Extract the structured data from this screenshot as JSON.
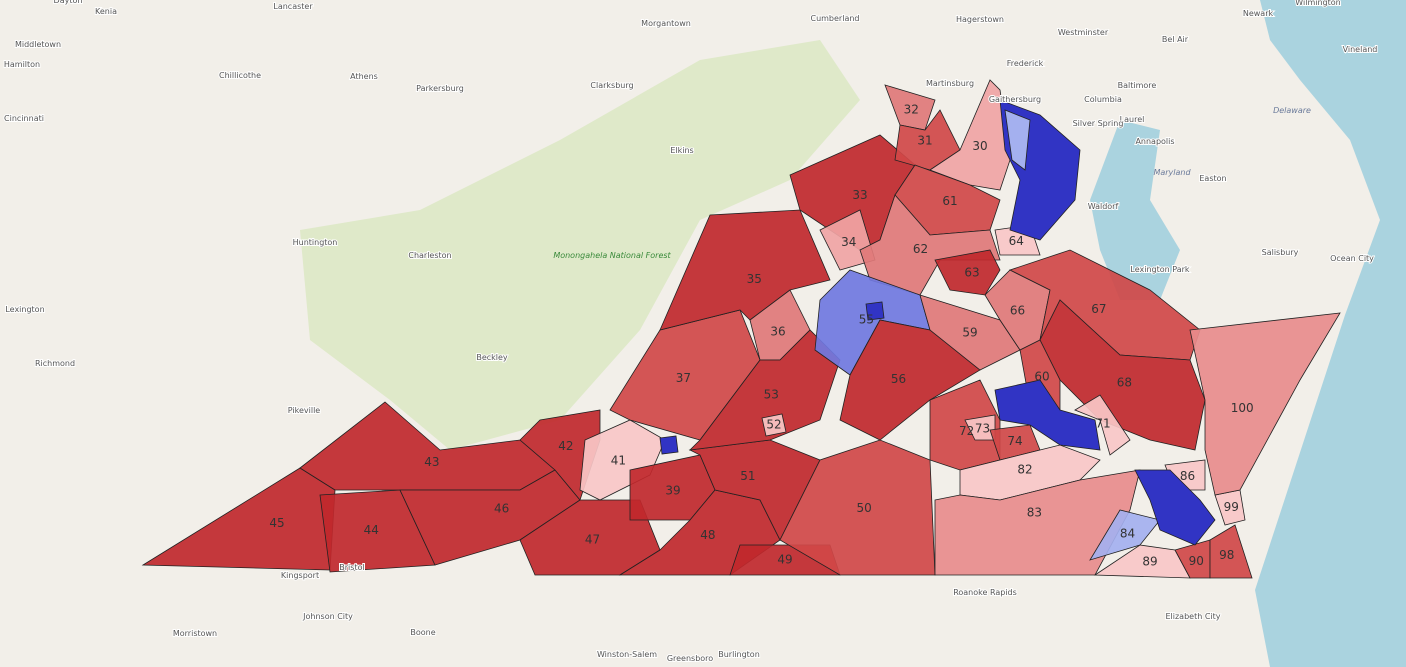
{
  "map": {
    "places": [
      "Dayton",
      "Kenia",
      "Lancaster",
      "Middletown",
      "Hamilton",
      "Chillicothe",
      "Athens",
      "Parkersburg",
      "Cincinnati",
      "Clarksburg",
      "Morgantown",
      "Cumberland",
      "Hagerstown",
      "Westminster",
      "Bel Air",
      "Baltimore",
      "Wilmington",
      "Newark",
      "Vineland",
      "Frederick",
      "Martinsburg",
      "Elkins",
      "Huntington",
      "Charleston",
      "Lexington",
      "Richmond",
      "Beckley",
      "Pikeville",
      "Kingsport",
      "Bristol",
      "Johnson City",
      "Morristown",
      "Boone",
      "Winston-Salem",
      "Greensboro",
      "Burlington",
      "Roanoke Rapids",
      "Elizabeth City",
      "Annapolis",
      "Waldorf",
      "Easton",
      "Salisbury",
      "Ocean City",
      "Lexington Park",
      "Laurel",
      "Columbia",
      "Gaithersburg",
      "Silver Spring"
    ],
    "regions": [
      "Monongahela National Forest",
      "Maryland",
      "Delaware"
    ],
    "districts": [
      {
        "label": "45",
        "color": "#c0282c"
      },
      {
        "label": "44",
        "color": "#c0282c"
      },
      {
        "label": "43",
        "color": "#c0282c"
      },
      {
        "label": "46",
        "color": "#c0282c"
      },
      {
        "label": "42",
        "color": "#c0282c"
      },
      {
        "label": "47",
        "color": "#c0282c"
      },
      {
        "label": "41",
        "color": "#f9c7c7"
      },
      {
        "label": "39",
        "color": "#c0282c"
      },
      {
        "label": "48",
        "color": "#c0282c"
      },
      {
        "label": "49",
        "color": "#c0282c"
      },
      {
        "label": "51",
        "color": "#c0282c"
      },
      {
        "label": "37",
        "color": "#d04848"
      },
      {
        "label": "35",
        "color": "#c0282c"
      },
      {
        "label": "36",
        "color": "#e07878"
      },
      {
        "label": "53",
        "color": "#c0282c"
      },
      {
        "label": "33",
        "color": "#c0282c"
      },
      {
        "label": "34",
        "color": "#f0a4a4"
      },
      {
        "label": "32",
        "color": "#e07878"
      },
      {
        "label": "31",
        "color": "#d04848"
      },
      {
        "label": "30",
        "color": "#f0a4a4"
      },
      {
        "label": "61",
        "color": "#d04848"
      },
      {
        "label": "62",
        "color": "#e07878"
      },
      {
        "label": "55",
        "color": "#7078e0"
      },
      {
        "label": "56",
        "color": "#c0282c"
      },
      {
        "label": "59",
        "color": "#e07878"
      },
      {
        "label": "63",
        "color": "#c0282c"
      },
      {
        "label": "64",
        "color": "#f9c7c7"
      },
      {
        "label": "66",
        "color": "#e07878"
      },
      {
        "label": "67",
        "color": "#d04848"
      },
      {
        "label": "68",
        "color": "#c0282c"
      },
      {
        "label": "60",
        "color": "#d04848"
      },
      {
        "label": "71",
        "color": "#f9c7c7"
      },
      {
        "label": "72",
        "color": "#d04848"
      },
      {
        "label": "73",
        "color": "#f9c7c7"
      },
      {
        "label": "74",
        "color": "#d04848"
      },
      {
        "label": "82",
        "color": "#f9c7c7"
      },
      {
        "label": "50",
        "color": "#d04848"
      },
      {
        "label": "83",
        "color": "#e88c8c"
      },
      {
        "label": "84",
        "color": "#a4b0ef"
      },
      {
        "label": "89",
        "color": "#f9c7c7"
      },
      {
        "label": "90",
        "color": "#d04848"
      },
      {
        "label": "98",
        "color": "#d04848"
      },
      {
        "label": "99",
        "color": "#f9c7c7"
      },
      {
        "label": "100",
        "color": "#e88c8c"
      },
      {
        "label": "86",
        "color": "#f9c7c7"
      },
      {
        "label": "52",
        "color": "#f9c7c7"
      }
    ]
  }
}
